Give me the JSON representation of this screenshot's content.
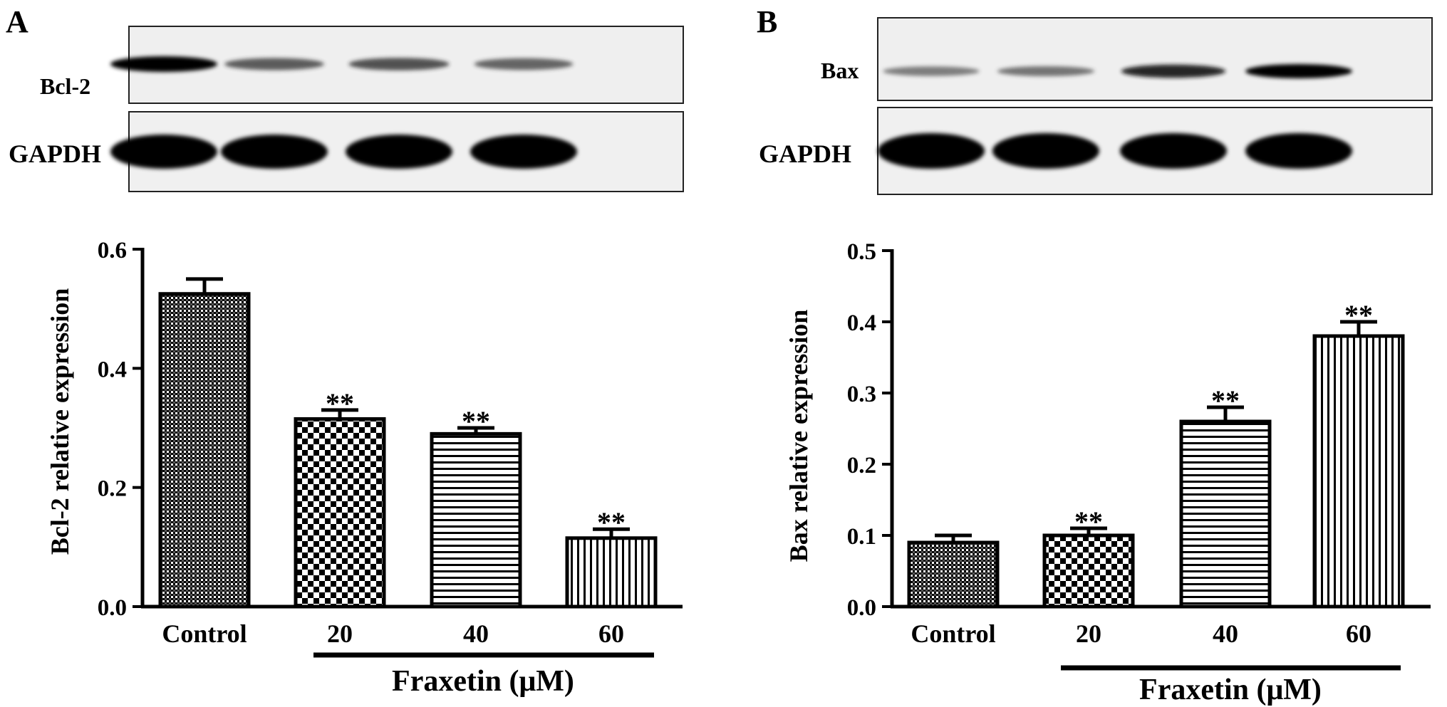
{
  "panels": [
    {
      "letter": "A",
      "blot": {
        "target_label": "Bcl-2",
        "loading_label": "GAPDH",
        "target_intensity": [
          1.0,
          0.55,
          0.6,
          0.5
        ],
        "loading_intensity": [
          1.0,
          1.0,
          1.0,
          1.0
        ]
      },
      "group_label": "Fraxetin (μM)"
    },
    {
      "letter": "B",
      "blot": {
        "target_label": "Bax",
        "loading_label": "GAPDH",
        "target_intensity": [
          0.35,
          0.4,
          0.85,
          1.0
        ],
        "loading_intensity": [
          1.0,
          1.0,
          1.0,
          1.0
        ]
      },
      "group_label": "Fraxetin (μM)"
    }
  ],
  "chart_data": [
    {
      "type": "bar",
      "categories": [
        "Control",
        "20",
        "40",
        "60"
      ],
      "values": [
        0.525,
        0.315,
        0.29,
        0.115
      ],
      "errors": [
        0.025,
        0.015,
        0.01,
        0.015
      ],
      "significance": [
        "",
        "**",
        "**",
        "**"
      ],
      "patterns": [
        "crosshatch",
        "checker",
        "horizontal",
        "vertical"
      ],
      "ylabel": "Bcl-2  relative expression",
      "ylim": [
        0,
        0.6
      ],
      "yticks": [
        0.0,
        0.2,
        0.4,
        0.6
      ],
      "ytick_labels": [
        "0.0",
        "0.2",
        "0.4",
        "0.6"
      ],
      "grid": false
    },
    {
      "type": "bar",
      "categories": [
        "Control",
        "20",
        "40",
        "60"
      ],
      "values": [
        0.09,
        0.1,
        0.26,
        0.38
      ],
      "errors": [
        0.01,
        0.01,
        0.02,
        0.02
      ],
      "significance": [
        "",
        "**",
        "**",
        "**"
      ],
      "patterns": [
        "crosshatch",
        "checker",
        "horizontal",
        "vertical"
      ],
      "ylabel": "Bax  relative expression",
      "ylim": [
        0,
        0.5
      ],
      "yticks": [
        0.0,
        0.1,
        0.2,
        0.3,
        0.4,
        0.5
      ],
      "ytick_labels": [
        "0.0",
        "0.1",
        "0.2",
        "0.3",
        "0.4",
        "0.5"
      ],
      "grid": false
    }
  ]
}
